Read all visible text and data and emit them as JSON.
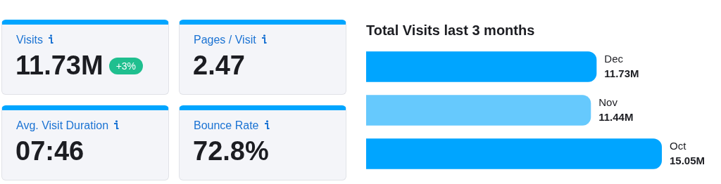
{
  "chart_data": [
    {
      "type": "other",
      "categories": [
        "Visits",
        "Pages / Visit",
        "Avg. Visit Duration",
        "Bounce Rate"
      ],
      "value_labels": [
        "11.73M",
        "2.47",
        "07:46",
        "72.8%"
      ],
      "annotations": [
        {
          "text": "+3%",
          "x": "Visits"
        }
      ]
    },
    {
      "type": "bar",
      "orientation": "horizontal",
      "title": "Total Visits last 3 months",
      "categories": [
        "Dec",
        "Nov",
        "Oct"
      ],
      "values": [
        11.73,
        11.44,
        15.05
      ],
      "colors": [
        "#00a5ff",
        "#66c9fd",
        "#00a5ff"
      ],
      "value_labels": [
        "11.73M",
        "11.44M",
        "15.05M"
      ]
    }
  ]
}
